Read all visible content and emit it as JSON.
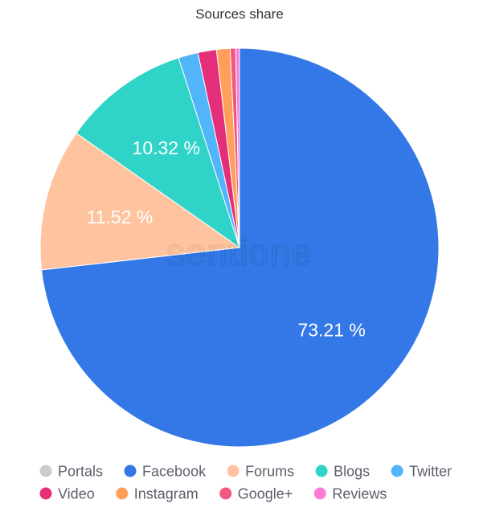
{
  "chart_data": {
    "type": "pie",
    "title": "Sources share",
    "legend_position": "bottom",
    "watermark": "sentione",
    "slices": [
      {
        "name": "Facebook",
        "value": 73.21,
        "color": "#3378e6",
        "label": "73.21 %"
      },
      {
        "name": "Portals",
        "value": 0.0,
        "color": "#cccccc",
        "label": ""
      },
      {
        "name": "Forums",
        "value": 11.52,
        "color": "#ffc49f",
        "label": "11.52 %"
      },
      {
        "name": "Blogs",
        "value": 10.32,
        "color": "#2fd3c7",
        "label": "10.32 %"
      },
      {
        "name": "Twitter",
        "value": 1.6,
        "color": "#52b5fa",
        "label": ""
      },
      {
        "name": "Video",
        "value": 1.5,
        "color": "#e52e7a",
        "label": ""
      },
      {
        "name": "Instagram",
        "value": 1.1,
        "color": "#ff9f5a",
        "label": ""
      },
      {
        "name": "Google+",
        "value": 0.45,
        "color": "#f2577f",
        "label": ""
      },
      {
        "name": "Reviews",
        "value": 0.3,
        "color": "#ff79d6",
        "label": ""
      }
    ],
    "legend_items": [
      {
        "name": "Portals",
        "color": "#cccccc"
      },
      {
        "name": "Facebook",
        "color": "#3378e6"
      },
      {
        "name": "Forums",
        "color": "#ffc49f"
      },
      {
        "name": "Blogs",
        "color": "#2fd3c7"
      },
      {
        "name": "Twitter",
        "color": "#52b5fa"
      },
      {
        "name": "Video",
        "color": "#e52e7a"
      },
      {
        "name": "Instagram",
        "color": "#ff9f5a"
      },
      {
        "name": "Google+",
        "color": "#f2577f"
      },
      {
        "name": "Reviews",
        "color": "#ff79d6"
      }
    ]
  }
}
